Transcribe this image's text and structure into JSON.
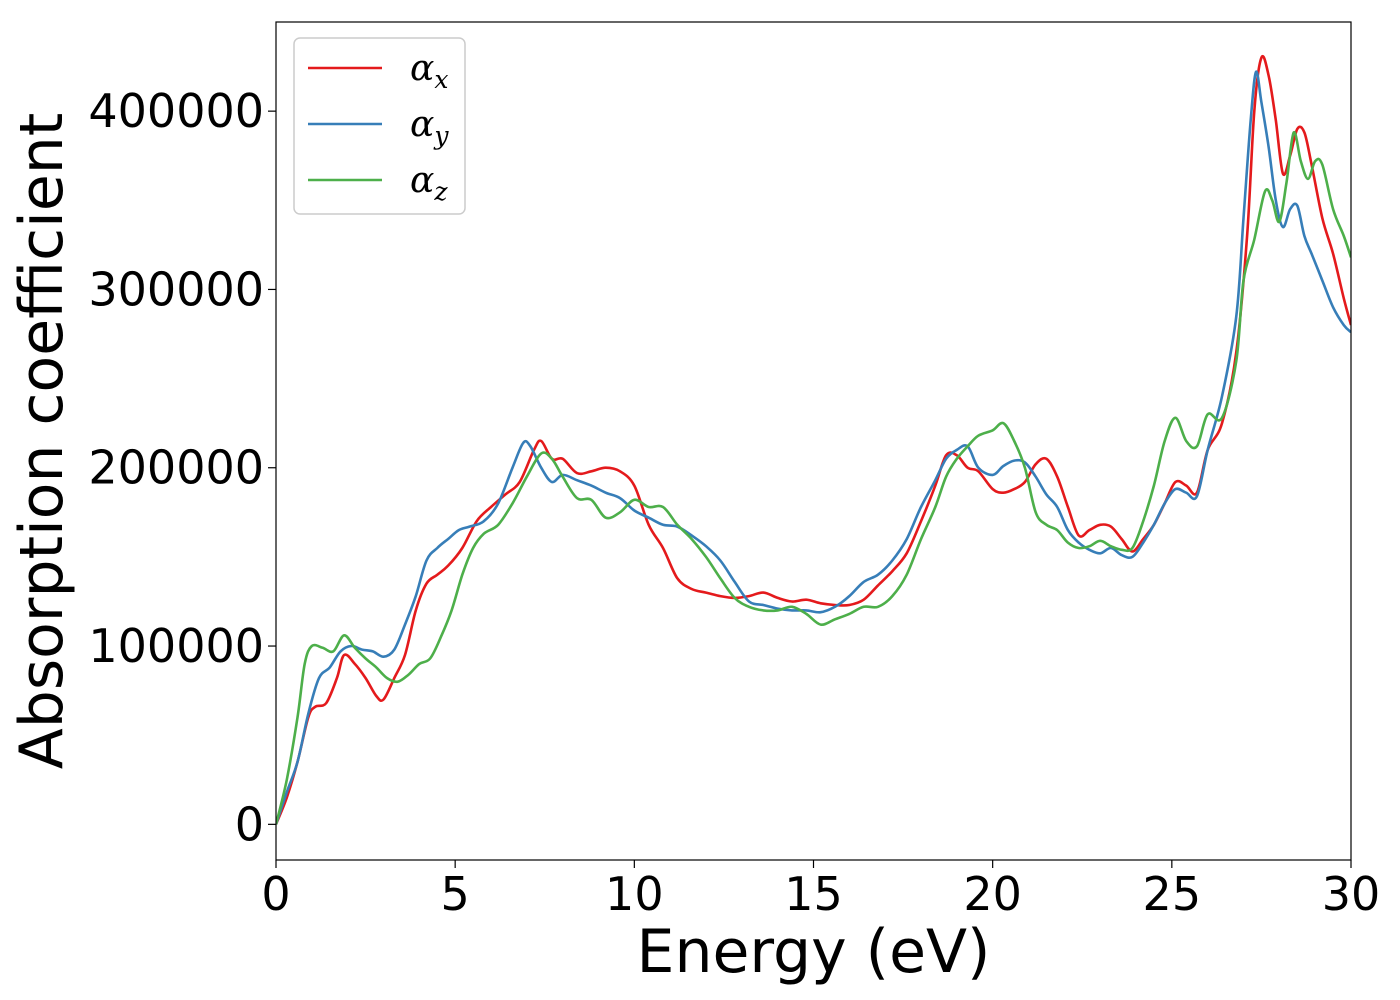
{
  "chart_data": {
    "type": "line",
    "title": "",
    "xlabel": "Energy (eV)",
    "ylabel": "Absorption coefficient",
    "xlim": [
      0,
      30
    ],
    "ylim": [
      -20000,
      450000
    ],
    "xticks": [
      0,
      5,
      10,
      15,
      20,
      25,
      30
    ],
    "xtick_labels": [
      "0",
      "5",
      "10",
      "15",
      "20",
      "25",
      "30"
    ],
    "yticks": [
      0,
      100000,
      200000,
      300000,
      400000
    ],
    "ytick_labels": [
      "0",
      "100000",
      "200000",
      "300000",
      "400000"
    ],
    "grid": false,
    "legend_position": "top-left",
    "series": [
      {
        "name": "α_x",
        "symbol": "α",
        "subscript": "x",
        "color": "#e41a1c",
        "x": [
          0,
          0.3,
          0.6,
          0.9,
          1.1,
          1.4,
          1.7,
          1.9,
          2.2,
          2.5,
          2.8,
          3.0,
          3.3,
          3.6,
          3.9,
          4.2,
          4.5,
          4.8,
          5.2,
          5.6,
          6.0,
          6.4,
          6.8,
          7.2,
          7.4,
          7.7,
          8.0,
          8.4,
          8.8,
          9.2,
          9.6,
          10.0,
          10.4,
          10.8,
          11.2,
          11.6,
          12.0,
          12.4,
          12.8,
          13.2,
          13.6,
          14.0,
          14.4,
          14.8,
          15.2,
          15.6,
          16.0,
          16.4,
          16.8,
          17.2,
          17.6,
          18.0,
          18.4,
          18.7,
          19.0,
          19.3,
          19.6,
          20.0,
          20.3,
          20.6,
          20.9,
          21.2,
          21.5,
          21.8,
          22.1,
          22.4,
          22.7,
          23.0,
          23.3,
          23.6,
          23.9,
          24.2,
          24.5,
          24.8,
          25.1,
          25.4,
          25.7,
          26.0,
          26.4,
          26.8,
          27.1,
          27.3,
          27.5,
          27.7,
          27.9,
          28.1,
          28.3,
          28.5,
          28.7,
          28.9,
          29.2,
          29.5,
          29.8,
          30.0
        ],
        "y": [
          0,
          15000,
          35000,
          60000,
          66000,
          68000,
          82000,
          95000,
          90000,
          82000,
          72000,
          70000,
          82000,
          95000,
          120000,
          135000,
          140000,
          145000,
          155000,
          170000,
          178000,
          185000,
          192000,
          210000,
          215000,
          205000,
          205000,
          197000,
          198000,
          200000,
          198000,
          190000,
          168000,
          155000,
          138000,
          132000,
          130000,
          128000,
          127000,
          128000,
          130000,
          127000,
          125000,
          126000,
          124000,
          123000,
          123000,
          126000,
          134000,
          142000,
          152000,
          170000,
          190000,
          207000,
          207000,
          200000,
          198000,
          188000,
          186000,
          188000,
          192000,
          202000,
          205000,
          195000,
          178000,
          162000,
          165000,
          168000,
          167000,
          160000,
          153000,
          160000,
          168000,
          180000,
          192000,
          190000,
          186000,
          210000,
          225000,
          265000,
          330000,
          400000,
          430000,
          420000,
          395000,
          365000,
          375000,
          390000,
          388000,
          370000,
          340000,
          320000,
          295000,
          280000
        ]
      },
      {
        "name": "α_y",
        "symbol": "α",
        "subscript": "y",
        "color": "#377eb8",
        "x": [
          0,
          0.3,
          0.6,
          0.9,
          1.2,
          1.5,
          1.8,
          2.1,
          2.4,
          2.7,
          3.0,
          3.3,
          3.6,
          3.9,
          4.2,
          4.5,
          4.8,
          5.1,
          5.4,
          5.8,
          6.2,
          6.6,
          6.9,
          7.1,
          7.4,
          7.7,
          8.0,
          8.4,
          8.8,
          9.2,
          9.6,
          10.0,
          10.4,
          10.8,
          11.2,
          11.6,
          12.0,
          12.4,
          12.8,
          13.2,
          13.6,
          14.0,
          14.4,
          14.8,
          15.2,
          15.6,
          16.0,
          16.4,
          16.8,
          17.2,
          17.6,
          18.0,
          18.4,
          18.7,
          19.0,
          19.3,
          19.6,
          20.0,
          20.3,
          20.6,
          20.9,
          21.2,
          21.5,
          21.8,
          22.1,
          22.4,
          22.7,
          23.0,
          23.3,
          23.6,
          23.9,
          24.2,
          24.5,
          24.8,
          25.1,
          25.4,
          25.7,
          26.0,
          26.4,
          26.8,
          27.0,
          27.2,
          27.35,
          27.5,
          27.7,
          27.9,
          28.1,
          28.3,
          28.5,
          28.7,
          28.9,
          29.2,
          29.5,
          29.8,
          30.0
        ],
        "y": [
          0,
          18000,
          35000,
          62000,
          82000,
          88000,
          97000,
          100000,
          98000,
          97000,
          94000,
          98000,
          112000,
          128000,
          148000,
          155000,
          160000,
          165000,
          167000,
          170000,
          180000,
          200000,
          214000,
          212000,
          200000,
          192000,
          196000,
          193000,
          190000,
          186000,
          183000,
          176000,
          172000,
          168000,
          167000,
          162000,
          156000,
          148000,
          136000,
          125000,
          123000,
          121000,
          120000,
          120000,
          119000,
          122000,
          128000,
          136000,
          140000,
          148000,
          160000,
          178000,
          193000,
          205000,
          210000,
          212000,
          200000,
          196000,
          201000,
          204000,
          203000,
          195000,
          185000,
          178000,
          165000,
          158000,
          154000,
          152000,
          155000,
          151000,
          150000,
          158000,
          168000,
          180000,
          188000,
          186000,
          184000,
          210000,
          240000,
          285000,
          340000,
          395000,
          422000,
          405000,
          380000,
          350000,
          335000,
          345000,
          347000,
          330000,
          320000,
          305000,
          290000,
          280000,
          276000
        ]
      },
      {
        "name": "α_z",
        "symbol": "α",
        "subscript": "z",
        "color": "#4daf4a",
        "x": [
          0,
          0.3,
          0.6,
          0.8,
          1.0,
          1.3,
          1.6,
          1.9,
          2.2,
          2.5,
          2.8,
          3.1,
          3.4,
          3.7,
          4.0,
          4.3,
          4.6,
          4.9,
          5.2,
          5.5,
          5.8,
          6.2,
          6.6,
          7.0,
          7.4,
          7.7,
          8.0,
          8.4,
          8.8,
          9.2,
          9.6,
          10.0,
          10.4,
          10.8,
          11.2,
          11.6,
          12.0,
          12.4,
          12.8,
          13.2,
          13.6,
          14.0,
          14.4,
          14.8,
          15.2,
          15.6,
          16.0,
          16.4,
          16.8,
          17.2,
          17.6,
          18.0,
          18.4,
          18.7,
          19.0,
          19.3,
          19.6,
          20.0,
          20.3,
          20.6,
          20.9,
          21.2,
          21.5,
          21.8,
          22.1,
          22.4,
          22.7,
          23.0,
          23.3,
          23.6,
          23.9,
          24.2,
          24.5,
          24.8,
          25.1,
          25.4,
          25.7,
          26.0,
          26.4,
          26.8,
          27.0,
          27.3,
          27.6,
          27.8,
          28.0,
          28.2,
          28.4,
          28.6,
          28.8,
          29.0,
          29.2,
          29.5,
          29.8,
          30.0
        ],
        "y": [
          0,
          25000,
          60000,
          90000,
          100000,
          99000,
          97000,
          106000,
          99000,
          93000,
          88000,
          82000,
          80000,
          84000,
          90000,
          93000,
          105000,
          120000,
          140000,
          155000,
          163000,
          168000,
          180000,
          195000,
          208000,
          205000,
          195000,
          183000,
          182000,
          172000,
          175000,
          182000,
          178000,
          178000,
          168000,
          160000,
          150000,
          138000,
          127000,
          122000,
          120000,
          120000,
          122000,
          118000,
          112000,
          115000,
          118000,
          122000,
          122000,
          128000,
          140000,
          160000,
          178000,
          195000,
          205000,
          212000,
          218000,
          221000,
          225000,
          215000,
          200000,
          175000,
          168000,
          165000,
          158000,
          155000,
          156000,
          159000,
          156000,
          154000,
          155000,
          170000,
          190000,
          215000,
          228000,
          215000,
          212000,
          230000,
          228000,
          260000,
          305000,
          328000,
          355000,
          350000,
          338000,
          360000,
          388000,
          372000,
          362000,
          372000,
          370000,
          345000,
          330000,
          318000
        ]
      }
    ]
  }
}
